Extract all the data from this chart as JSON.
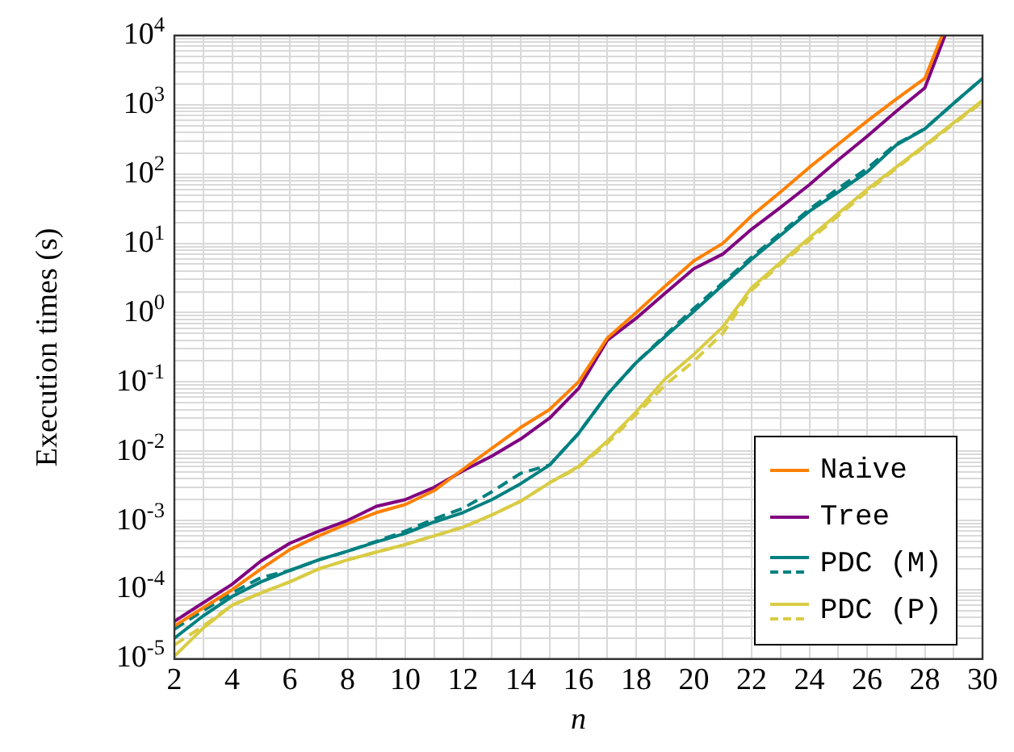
{
  "chart_data": {
    "type": "line",
    "xlabel": "n",
    "ylabel": "Execution times (s)",
    "x": [
      2,
      3,
      4,
      5,
      6,
      7,
      8,
      9,
      10,
      11,
      12,
      13,
      14,
      15,
      16,
      17,
      18,
      19,
      20,
      21,
      22,
      23,
      24,
      25,
      26,
      27,
      28,
      29,
      30
    ],
    "xlim": [
      2,
      30
    ],
    "xticks": [
      2,
      {
        "value": 3,
        "label": null
      },
      4,
      {
        "value": 5,
        "label": null
      },
      6,
      {
        "value": 7,
        "label": null
      },
      8,
      {
        "value": 9,
        "label": null
      },
      10,
      {
        "value": 11,
        "label": null
      },
      12,
      {
        "value": 13,
        "label": null
      },
      14,
      {
        "value": 15,
        "label": null
      },
      16,
      {
        "value": 17,
        "label": null
      },
      18,
      {
        "value": 19,
        "label": null
      },
      20,
      {
        "value": 21,
        "label": null
      },
      22,
      {
        "value": 23,
        "label": null
      },
      24,
      {
        "value": 25,
        "label": null
      },
      26,
      {
        "value": 27,
        "label": null
      },
      28,
      {
        "value": 29,
        "label": null
      },
      30
    ],
    "ylim": [
      1e-05,
      10000
    ],
    "yticks": [
      {
        "value": 1e-05,
        "label": "10$^{-5}$"
      },
      {
        "value": 2e-05,
        "label": null
      },
      {
        "value": 3e-05,
        "label": null
      },
      {
        "value": 4e-05,
        "label": null
      },
      {
        "value": 5e-05,
        "label": null
      },
      {
        "value": 6e-05,
        "label": null
      },
      {
        "value": 7e-05,
        "label": null
      },
      {
        "value": 8e-05,
        "label": null
      },
      {
        "value": 9e-05,
        "label": null
      },
      {
        "value": 0.0001,
        "label": "10$^{-4}$"
      },
      {
        "value": 0.0002,
        "label": null
      },
      {
        "value": 0.0003,
        "label": null
      },
      {
        "value": 0.0004,
        "label": null
      },
      {
        "value": 0.0005,
        "label": null
      },
      {
        "value": 0.0006,
        "label": null
      },
      {
        "value": 0.0007,
        "label": null
      },
      {
        "value": 0.0008,
        "label": null
      },
      {
        "value": 0.0009,
        "label": null
      },
      {
        "value": 0.001,
        "label": "10$^{-3}$"
      },
      {
        "value": 0.002,
        "label": null
      },
      {
        "value": 0.003,
        "label": null
      },
      {
        "value": 0.004,
        "label": null
      },
      {
        "value": 0.005,
        "label": null
      },
      {
        "value": 0.006,
        "label": null
      },
      {
        "value": 0.007,
        "label": null
      },
      {
        "value": 0.008,
        "label": null
      },
      {
        "value": 0.009,
        "label": null
      },
      {
        "value": 0.01,
        "label": "10$^{-2}$"
      },
      {
        "value": 0.02,
        "label": null
      },
      {
        "value": 0.03,
        "label": null
      },
      {
        "value": 0.04,
        "label": null
      },
      {
        "value": 0.05,
        "label": null
      },
      {
        "value": 0.06,
        "label": null
      },
      {
        "value": 0.07,
        "label": null
      },
      {
        "value": 0.08,
        "label": null
      },
      {
        "value": 0.09,
        "label": null
      },
      {
        "value": 0.1,
        "label": "10$^{-1}$"
      },
      {
        "value": 0.2,
        "label": null
      },
      {
        "value": 0.3,
        "label": null
      },
      {
        "value": 0.4,
        "label": null
      },
      {
        "value": 0.5,
        "label": null
      },
      {
        "value": 0.6,
        "label": null
      },
      {
        "value": 0.7,
        "label": null
      },
      {
        "value": 0.8,
        "label": null
      },
      {
        "value": 0.9,
        "label": null
      },
      {
        "value": 1,
        "label": "10$^{0}$"
      },
      {
        "value": 2,
        "label": null
      },
      {
        "value": 3,
        "label": null
      },
      {
        "value": 4,
        "label": null
      },
      {
        "value": 5,
        "label": null
      },
      {
        "value": 6,
        "label": null
      },
      {
        "value": 7,
        "label": null
      },
      {
        "value": 8,
        "label": null
      },
      {
        "value": 9,
        "label": null
      },
      {
        "value": 10,
        "label": "10$^{1}$"
      },
      {
        "value": 20,
        "label": null
      },
      {
        "value": 30,
        "label": null
      },
      {
        "value": 40,
        "label": null
      },
      {
        "value": 50,
        "label": null
      },
      {
        "value": 60,
        "label": null
      },
      {
        "value": 70,
        "label": null
      },
      {
        "value": 80,
        "label": null
      },
      {
        "value": 90,
        "label": null
      },
      {
        "value": 100,
        "label": "10$^{2}$"
      },
      {
        "value": 200,
        "label": null
      },
      {
        "value": 300,
        "label": null
      },
      {
        "value": 400,
        "label": null
      },
      {
        "value": 500,
        "label": null
      },
      {
        "value": 600,
        "label": null
      },
      {
        "value": 700,
        "label": null
      },
      {
        "value": 800,
        "label": null
      },
      {
        "value": 900,
        "label": null
      },
      {
        "value": 1000,
        "label": "10$^{3}$"
      },
      {
        "value": 2000,
        "label": null
      },
      {
        "value": 3000,
        "label": null
      },
      {
        "value": 4000,
        "label": null
      },
      {
        "value": 5000,
        "label": null
      },
      {
        "value": 6000,
        "label": null
      },
      {
        "value": 7000,
        "label": null
      },
      {
        "value": 8000,
        "label": null
      },
      {
        "value": 9000,
        "label": null
      },
      {
        "value": 10000,
        "label": "10$^{4}$"
      }
    ],
    "log": "y",
    "grid": true,
    "legend": "bottom right",
    "marker": "none",
    "series": [
      {
        "name": "Naive",
        "color": "#ff8000",
        "x": [
          2,
          3,
          4,
          5,
          6,
          7,
          8,
          9,
          10,
          11,
          12,
          13,
          14,
          15,
          16,
          17,
          18,
          19,
          20,
          21,
          22,
          23,
          24,
          25,
          26,
          27,
          28,
          28.6
        ],
        "values": [
          3e-05,
          5.5e-05,
          0.0001,
          0.0002,
          0.00038,
          0.0006,
          0.0009,
          0.0013,
          0.0017,
          0.0027,
          0.0055,
          0.011,
          0.022,
          0.04,
          0.1,
          0.43,
          1,
          2.4,
          5.6,
          10,
          25,
          55,
          125,
          270,
          580,
          1200,
          2400,
          10000
        ]
      },
      {
        "name": "Tree",
        "color": "#800080",
        "x": [
          2,
          3,
          4,
          5,
          6,
          7,
          8,
          9,
          10,
          11,
          12,
          13,
          14,
          15,
          16,
          17,
          18,
          19,
          20,
          21,
          22,
          23,
          24,
          25,
          26,
          27,
          28,
          28.7
        ],
        "values": [
          3.5e-05,
          6.5e-05,
          0.00012,
          0.00026,
          0.00047,
          0.0007,
          0.001,
          0.0016,
          0.002,
          0.003,
          0.0052,
          0.0085,
          0.015,
          0.03,
          0.08,
          0.4,
          0.83,
          1.9,
          4.3,
          7,
          16,
          33,
          70,
          160,
          350,
          800,
          1750,
          10000
        ]
      },
      {
        "name": "PDC (M)",
        "color": "#008080",
        "values": [
          2e-05,
          4.2e-05,
          8e-05,
          0.00013,
          0.00019,
          0.00027,
          0.00036,
          0.00049,
          0.00065,
          0.00095,
          0.0013,
          0.002,
          0.0034,
          0.0063,
          0.018,
          0.066,
          0.19,
          0.45,
          1.05,
          2.5,
          5.9,
          13,
          29,
          55,
          107,
          260,
          450,
          1050,
          2400
        ]
      },
      {
        "color": "#008080",
        "line_style": "dashed",
        "values": [
          2.7e-05,
          5e-05,
          9e-05,
          0.00015,
          0.00019,
          0.00027,
          0.00036,
          0.0005,
          0.0007,
          0.00105,
          0.0015,
          0.0026,
          0.0048,
          0.0063,
          0.018,
          0.066,
          0.19,
          0.47,
          1.15,
          2.7,
          6.3,
          14,
          31,
          62,
          120,
          270,
          450,
          1050,
          2400
        ]
      },
      {
        "name": "PDC (P)",
        "color": "#d9cc45",
        "values": [
          1.1e-05,
          2.8e-05,
          6e-05,
          9e-05,
          0.00013,
          0.0002,
          0.00027,
          0.00035,
          0.00045,
          0.0006,
          0.0008,
          0.0012,
          0.0019,
          0.0035,
          0.006,
          0.014,
          0.037,
          0.11,
          0.25,
          0.62,
          2.3,
          5.3,
          12,
          27,
          60,
          125,
          260,
          550,
          1150
        ]
      },
      {
        "color": "#d9cc45",
        "line_style": "dashed",
        "values": [
          1.6e-05,
          3e-05,
          6e-05,
          9e-05,
          0.00013,
          0.0002,
          0.00027,
          0.00035,
          0.00045,
          0.0006,
          0.0008,
          0.0012,
          0.0019,
          0.0035,
          0.0058,
          0.013,
          0.034,
          0.09,
          0.2,
          0.5,
          2.1,
          5,
          11,
          25,
          56,
          120,
          250,
          530,
          1100
        ]
      }
    ]
  }
}
